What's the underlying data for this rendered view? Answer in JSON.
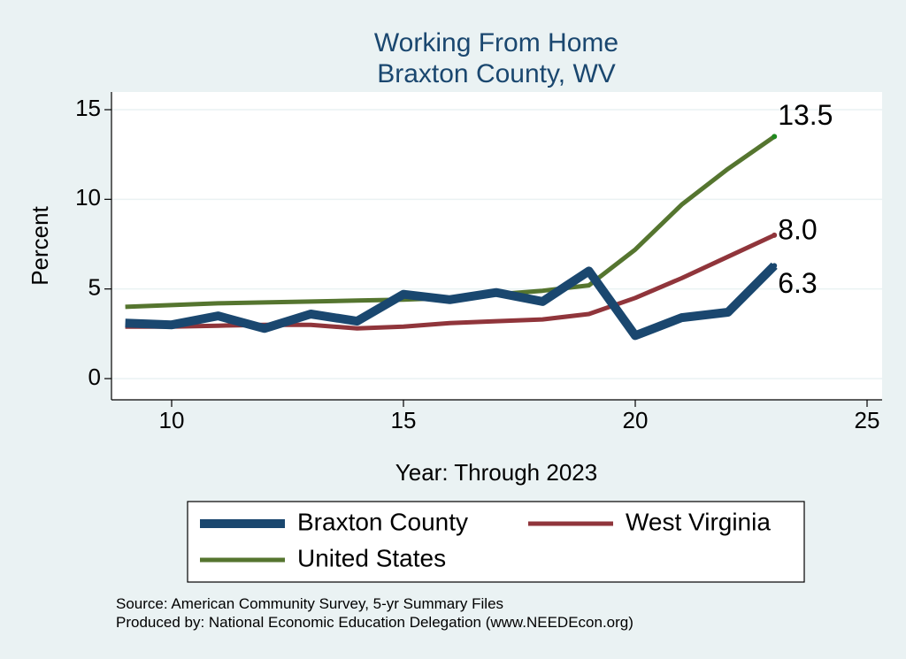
{
  "chart_data": {
    "type": "line",
    "title": "Working From Home",
    "subtitle": "Braxton County, WV",
    "xlabel": "Year: Through 2023",
    "ylabel": "Percent",
    "xlim": [
      9,
      25
    ],
    "ylim": [
      0,
      15
    ],
    "xticks": [
      10,
      15,
      20,
      25
    ],
    "yticks": [
      0,
      5,
      10,
      15
    ],
    "grid": true,
    "legend_position": "bottom",
    "series": [
      {
        "name": "Braxton County",
        "color": "#1a476f",
        "x": [
          9,
          10,
          11,
          12,
          13,
          14,
          15,
          16,
          17,
          18,
          19,
          20,
          21,
          22,
          23
        ],
        "values": [
          3.1,
          3.0,
          3.5,
          2.8,
          3.6,
          3.2,
          4.7,
          4.4,
          4.8,
          4.3,
          6.0,
          2.4,
          3.4,
          3.7,
          6.3
        ],
        "end_label": "6.3"
      },
      {
        "name": "West Virginia",
        "color": "#90353b",
        "x": [
          9,
          10,
          11,
          12,
          13,
          14,
          15,
          16,
          17,
          18,
          19,
          20,
          21,
          22,
          23
        ],
        "values": [
          2.9,
          2.9,
          2.95,
          3.0,
          3.0,
          2.8,
          2.9,
          3.1,
          3.2,
          3.3,
          3.6,
          4.5,
          5.6,
          6.8,
          8.0
        ],
        "end_label": "8.0"
      },
      {
        "name": "United States",
        "color": "#55752f",
        "x": [
          9,
          10,
          11,
          12,
          13,
          14,
          15,
          16,
          17,
          18,
          19,
          20,
          21,
          22,
          23
        ],
        "values": [
          4.0,
          4.1,
          4.2,
          4.25,
          4.3,
          4.35,
          4.4,
          4.5,
          4.7,
          4.9,
          5.2,
          7.2,
          9.7,
          11.7,
          13.5
        ],
        "end_label": "13.5"
      }
    ]
  },
  "notes": {
    "source": "Source: American Community Survey, 5-yr Summary Files",
    "produced_by": "Produced by: National Economic Education Delegation (www.NEEDEcon.org)"
  }
}
